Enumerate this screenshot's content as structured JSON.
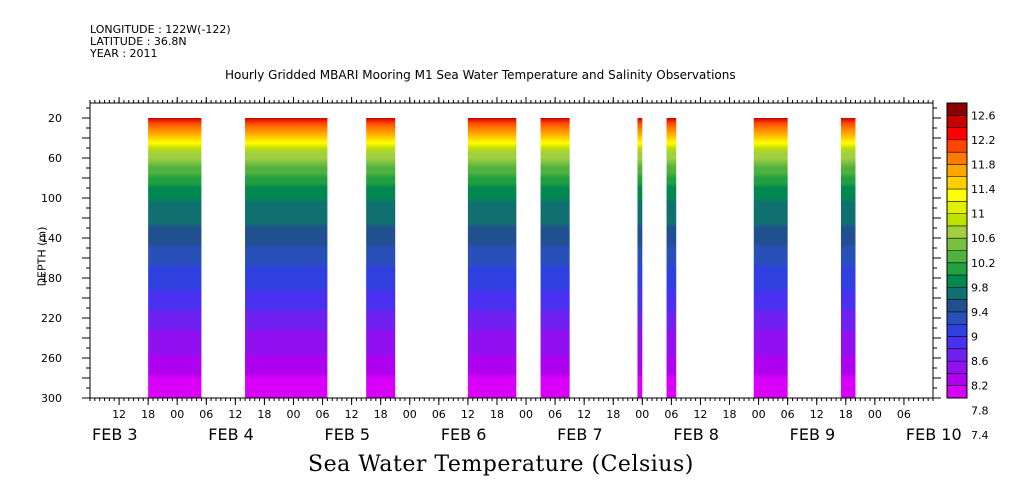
{
  "header": {
    "longitude": "LONGITUDE : 122W(-122)",
    "latitude": "LATITUDE : 36.8N",
    "year": "YEAR : 2011"
  },
  "chart_data": {
    "type": "heatmap",
    "title": "Hourly Gridded MBARI Mooring M1 Sea Water Temperature and Salinity Observations",
    "xlabel": "Sea Water Temperature (Celsius)",
    "ylabel": "DEPTH (m)",
    "ylim": [
      300,
      5
    ],
    "yticks": [
      20,
      60,
      100,
      140,
      180,
      220,
      260,
      300
    ],
    "xlim_hours_from": "FEB 3 06:00",
    "xlim_hours_to": "FEB 10 12:00",
    "hour_tick_labels": [
      "12",
      "18",
      "00",
      "06",
      "12",
      "18",
      "00",
      "06",
      "12",
      "18",
      "00",
      "06",
      "12",
      "18",
      "00",
      "06",
      "12",
      "18",
      "00",
      "06",
      "12",
      "18",
      "00",
      "06",
      "12",
      "18",
      "00",
      "06"
    ],
    "day_labels": [
      "FEB  3",
      "FEB  4",
      "FEB  5",
      "FEB  6",
      "FEB  7",
      "FEB  8",
      "FEB  9",
      "FEB 10"
    ],
    "colorbar": {
      "labels": [
        "12.6",
        "12.2",
        "11.8",
        "11.4",
        "11",
        "10.6",
        "10.2",
        "9.8",
        "9.4",
        "9",
        "8.6",
        "8.2",
        "7.8",
        "7.4"
      ],
      "colors": [
        "#8b0000",
        "#c80000",
        "#ff0000",
        "#ff4500",
        "#ff7a00",
        "#ffa500",
        "#ffd000",
        "#ffff00",
        "#e0f000",
        "#c0e000",
        "#a0d040",
        "#78c040",
        "#50b040",
        "#20a040",
        "#008850",
        "#107070",
        "#205090",
        "#2850b8",
        "#3040e0",
        "#4a30f0",
        "#7020f0",
        "#9010f0",
        "#b000f0",
        "#d800f8"
      ],
      "range": [
        7.4,
        12.6
      ]
    },
    "data_segments": [
      {
        "start": "FEB 3 18:00",
        "end": "FEB 4 05:00"
      },
      {
        "start": "FEB 4 14:00",
        "end": "FEB 5 07:00"
      },
      {
        "start": "FEB 5 15:00",
        "end": "FEB 5 21:00"
      },
      {
        "start": "FEB 6 12:00",
        "end": "FEB 6 22:00"
      },
      {
        "start": "FEB 7 03:00",
        "end": "FEB 7 09:00"
      },
      {
        "start": "FEB 7 23:00",
        "end": "FEB 8 00:00"
      },
      {
        "start": "FEB 8 05:00",
        "end": "FEB 8 07:00"
      },
      {
        "start": "FEB 8 23:00",
        "end": "FEB 9 06:00"
      },
      {
        "start": "FEB 9 17:00",
        "end": "FEB 9 20:00"
      }
    ],
    "profile": [
      {
        "depth": 20,
        "temp": 12.2
      },
      {
        "depth": 35,
        "temp": 11.4
      },
      {
        "depth": 50,
        "temp": 10.6
      },
      {
        "depth": 70,
        "temp": 9.9
      },
      {
        "depth": 100,
        "temp": 9.4
      },
      {
        "depth": 140,
        "temp": 9.0
      },
      {
        "depth": 180,
        "temp": 8.6
      },
      {
        "depth": 220,
        "temp": 8.2
      },
      {
        "depth": 260,
        "temp": 7.8
      },
      {
        "depth": 300,
        "temp": 7.4
      }
    ]
  }
}
